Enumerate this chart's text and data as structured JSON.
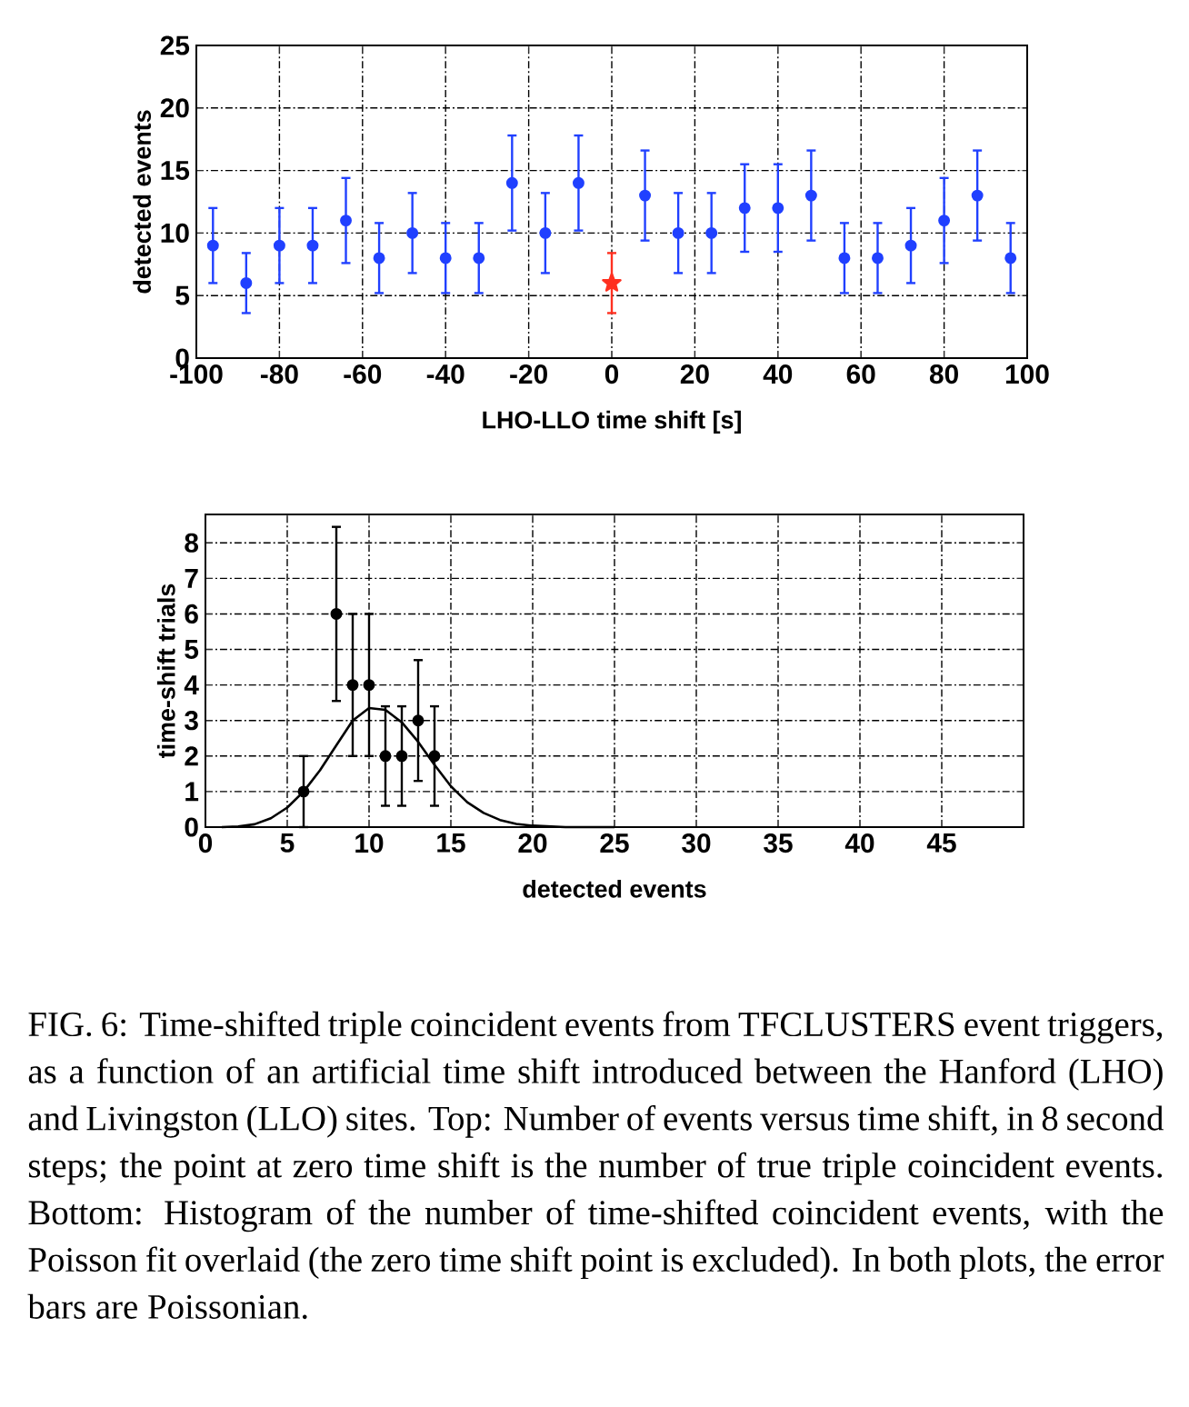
{
  "chart_data": [
    {
      "type": "scatter",
      "xlabel": "LHO-LLO time shift [s]",
      "ylabel": "detected events",
      "xlim": [
        -100,
        100
      ],
      "xticks": [
        -100,
        -80,
        -60,
        -40,
        -20,
        0,
        20,
        40,
        60,
        80,
        100
      ],
      "ylim": [
        0,
        25
      ],
      "yticks": [
        0,
        5,
        10,
        15,
        20,
        25
      ],
      "grid": true,
      "series": [
        {
          "color": "#2040ff",
          "marker": "circle",
          "x": [
            -96,
            -88,
            -80,
            -72,
            -64,
            -56,
            -48,
            -40,
            -32,
            -24,
            -16,
            -8,
            8,
            16,
            24,
            32,
            40,
            48,
            56,
            64,
            72,
            80,
            88,
            96
          ],
          "values": [
            9,
            6,
            9,
            9,
            11,
            8,
            10,
            8,
            8,
            14,
            10,
            14,
            13,
            10,
            10,
            12,
            12,
            13,
            8,
            8,
            9,
            11,
            13,
            8
          ],
          "errors": [
            3,
            2.4,
            3,
            3,
            3.4,
            2.8,
            3.2,
            2.8,
            2.8,
            3.8,
            3.2,
            3.8,
            3.6,
            3.2,
            3.2,
            3.5,
            3.5,
            3.6,
            2.8,
            2.8,
            3,
            3.4,
            3.6,
            2.8
          ]
        },
        {
          "color": "#ff3020",
          "marker": "star",
          "x": [
            0
          ],
          "values": [
            6
          ],
          "errors": [
            2.4
          ]
        }
      ]
    },
    {
      "type": "scatter",
      "xlabel": "detected events",
      "ylabel": "time-shift trials",
      "xlim": [
        0,
        50
      ],
      "xticks": [
        0,
        5,
        10,
        15,
        20,
        25,
        30,
        35,
        40,
        45
      ],
      "ylim": [
        0,
        8.8
      ],
      "yticks": [
        0,
        1,
        2,
        3,
        4,
        5,
        6,
        7,
        8
      ],
      "grid": true,
      "series": [
        {
          "color": "#000000",
          "marker": "circle",
          "x": [
            6,
            8,
            9,
            10,
            11,
            12,
            13,
            14
          ],
          "values": [
            1,
            6,
            4,
            4,
            2,
            2,
            3,
            2
          ],
          "errors": [
            1,
            2.45,
            2,
            2,
            1.4,
            1.4,
            1.7,
            1.4
          ]
        },
        {
          "type": "line",
          "color": "#000000",
          "marker": "none",
          "x": [
            1,
            2,
            3,
            4,
            5,
            6,
            7,
            8,
            9,
            10,
            11,
            12,
            13,
            14,
            15,
            16,
            17,
            18,
            19,
            20,
            22,
            25
          ],
          "values": [
            0,
            0.02,
            0.08,
            0.25,
            0.55,
            1.0,
            1.6,
            2.3,
            3.0,
            3.35,
            3.3,
            2.95,
            2.4,
            1.75,
            1.15,
            0.7,
            0.4,
            0.2,
            0.09,
            0.04,
            0,
            0
          ]
        }
      ],
      "annotations": [
        "FIG. 6: Time-shifted triple coincident events from TFCLUSTERS event triggers, as a function of an artificial time shift introduced between the Hanford (LHO) and Livingston (LLO) sites.  Top: Number of events versus time shift, in 8 second steps; the point at zero time shift is the number of true triple coincident events.  Bottom: Histogram of the number of time-shifted coincident events, with the Poisson fit overlaid (the zero time shift point is excluded).  In both plots, the error bars are Poissonian."
      ]
    }
  ]
}
